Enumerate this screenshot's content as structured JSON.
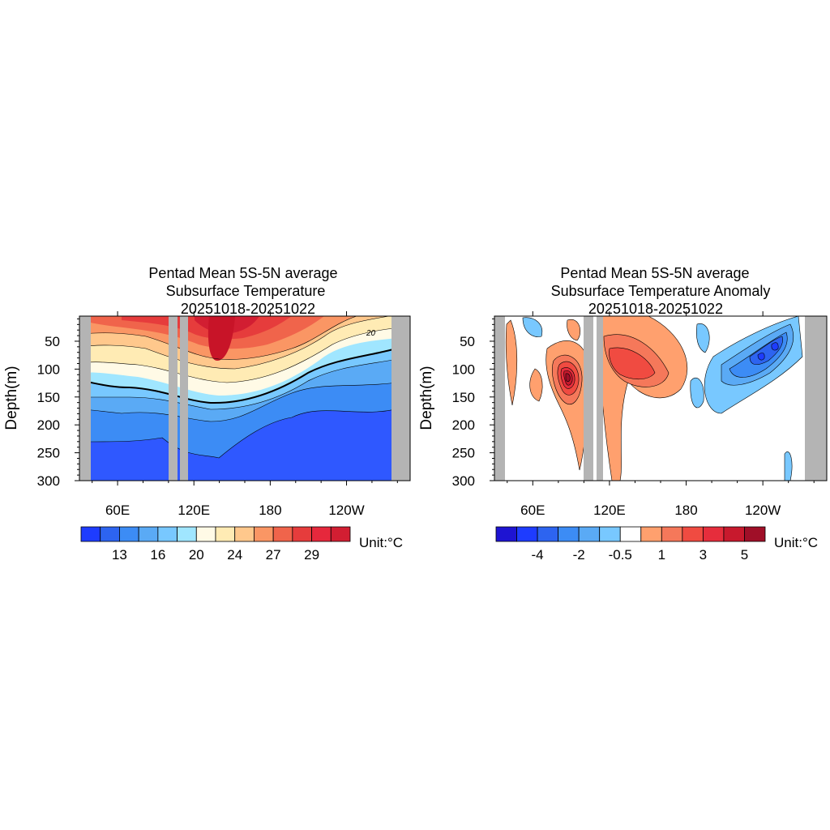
{
  "chart_data": [
    {
      "type": "heatmap",
      "title_lines": [
        "Pentad Mean 5S-5N average",
        "Subsurface Temperature",
        "20251018-20251022"
      ],
      "ylabel": "Depth(m)",
      "x_tick_labels": [
        "60E",
        "120E",
        "180",
        "120W"
      ],
      "x_ticks_deg": [
        60,
        120,
        180,
        240
      ],
      "xlim_deg": [
        30,
        290
      ],
      "y_ticks": [
        50,
        100,
        150,
        200,
        250,
        300
      ],
      "ylim": [
        5,
        300
      ],
      "y_reversed": true,
      "unit_label": "Unit:°C",
      "contour_label": "20",
      "colorbar_labels": [
        "13",
        "16",
        "20",
        "24",
        "27",
        "29"
      ],
      "colorbar_colors": [
        "#1e3cff",
        "#2d64f0",
        "#3c8cf5",
        "#5aaaf5",
        "#78c8ff",
        "#a0e6ff",
        "#fffae6",
        "#ffebb4",
        "#ffc88c",
        "#fa9664",
        "#f0644b",
        "#e63c3c",
        "#e6283c",
        "#d21e32"
      ],
      "isotherm_20C_depth_m": [
        {
          "lon": 40,
          "depth": 95
        },
        {
          "lon": 50,
          "depth": 120
        },
        {
          "lon": 60,
          "depth": 112
        },
        {
          "lon": 75,
          "depth": 118
        },
        {
          "lon": 90,
          "depth": 122
        },
        {
          "lon": 100,
          "depth": 130
        },
        {
          "lon": 130,
          "depth": 165
        },
        {
          "lon": 150,
          "depth": 170
        },
        {
          "lon": 170,
          "depth": 168
        },
        {
          "lon": 190,
          "depth": 150
        },
        {
          "lon": 210,
          "depth": 120
        },
        {
          "lon": 230,
          "depth": 90
        },
        {
          "lon": 250,
          "depth": 65
        },
        {
          "lon": 270,
          "depth": 40
        },
        {
          "lon": 280,
          "depth": 30
        }
      ],
      "land_lon_ranges": [
        [
          32,
          40
        ],
        [
          99,
          104
        ],
        [
          107,
          112
        ],
        [
          282,
          290
        ]
      ]
    },
    {
      "type": "heatmap",
      "title_lines": [
        "Pentad Mean 5S-5N average",
        "Subsurface Temperature Anomaly",
        "20251018-20251022"
      ],
      "ylabel": "Depth(m)",
      "x_tick_labels": [
        "60E",
        "120E",
        "180",
        "120W"
      ],
      "x_ticks_deg": [
        60,
        120,
        180,
        240
      ],
      "xlim_deg": [
        30,
        290
      ],
      "y_ticks": [
        50,
        100,
        150,
        200,
        250,
        300
      ],
      "ylim": [
        5,
        300
      ],
      "y_reversed": true,
      "unit_label": "Unit:°C",
      "colorbar_labels": [
        "-4",
        "-2",
        "-0.5",
        "1",
        "3",
        "5"
      ],
      "colorbar_colors": [
        "#1e14d2",
        "#1e3cff",
        "#2d64f0",
        "#3c8cf5",
        "#5aaaf5",
        "#78c8ff",
        "#ffffff",
        "#ffa06e",
        "#f5785a",
        "#f04b41",
        "#e62d3c",
        "#c8192d",
        "#a00f28"
      ],
      "warm_anomaly_max_C": 5,
      "warm_anomaly_center": {
        "lon": 90,
        "depth": 115
      },
      "cool_anomaly_min_C": -4,
      "cool_anomaly_center": {
        "lon": 258,
        "depth": 85
      },
      "land_lon_ranges": [
        [
          32,
          40
        ],
        [
          100,
          106
        ],
        [
          109,
          113
        ],
        [
          282,
          290
        ]
      ]
    }
  ]
}
